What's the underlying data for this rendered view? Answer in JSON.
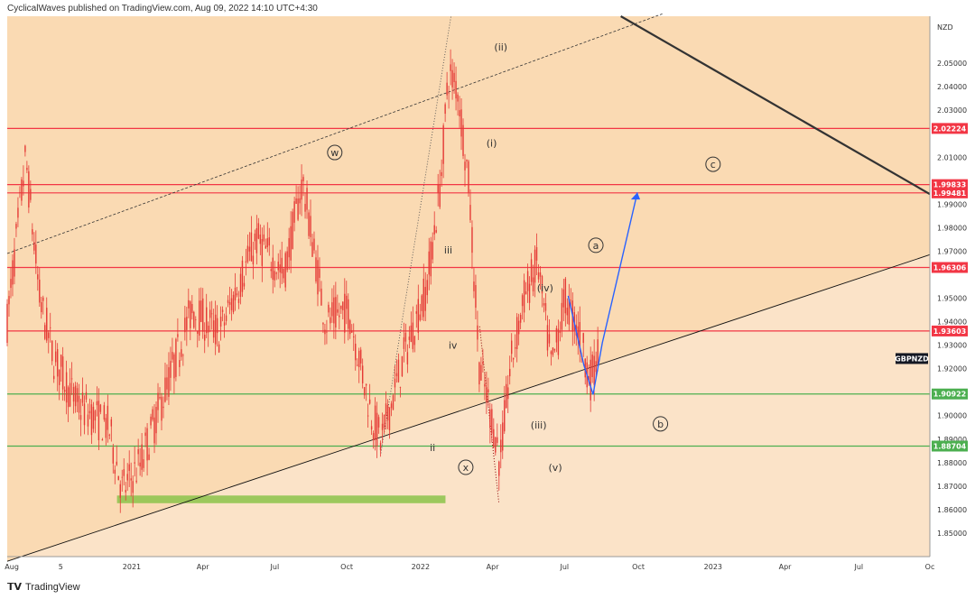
{
  "header": {
    "publisher_line": "CyclicalWaves published on TradingView.com, Aug 09, 2022 14:10 UTC+4:30"
  },
  "footer": {
    "brand": "TradingView"
  },
  "chart_data": {
    "type": "candlestick",
    "symbol": "GBPNZD",
    "currency": "NZD",
    "x_ticks": [
      "Aug",
      "5",
      "2021",
      "Apr",
      "Jul",
      "Oct",
      "2022",
      "Apr",
      "Jul",
      "Oct",
      "2023",
      "Apr",
      "Jul",
      "Oc"
    ],
    "y_ticks": [
      "2.05000",
      "2.04000",
      "2.03000",
      "2.01000",
      "1.99000",
      "1.98000",
      "1.97000",
      "1.95000",
      "1.94000",
      "1.93000",
      "1.92000",
      "1.90000",
      "1.89000",
      "1.88000",
      "1.87000",
      "1.86000",
      "1.85000"
    ],
    "ylim": [
      1.84,
      2.07
    ],
    "price_levels": [
      {
        "label": "2.02224",
        "value": 2.02224,
        "color": "#f23645"
      },
      {
        "label": "1.99833",
        "value": 1.99833,
        "color": "#f23645"
      },
      {
        "label": "1.99481",
        "value": 1.99481,
        "color": "#f23645"
      },
      {
        "label": "1.96306",
        "value": 1.96306,
        "color": "#f23645"
      },
      {
        "label": "1.93603",
        "value": 1.93603,
        "color": "#f23645"
      },
      {
        "label": "1.90922",
        "value": 1.90922,
        "color": "#4caf50"
      },
      {
        "label": "1.88704",
        "value": 1.88704,
        "color": "#4caf50"
      }
    ],
    "wave_labels": [
      {
        "text": "(ii)",
        "circled": false,
        "t": 0.535,
        "price": 2.057
      },
      {
        "text": "(i)",
        "circled": false,
        "t": 0.525,
        "price": 2.016
      },
      {
        "text": "w",
        "circled": true,
        "t": 0.355,
        "price": 2.012
      },
      {
        "text": "c",
        "circled": true,
        "t": 0.765,
        "price": 2.007
      },
      {
        "text": "a",
        "circled": true,
        "t": 0.638,
        "price": 1.9725
      },
      {
        "text": "iii",
        "circled": false,
        "t": 0.478,
        "price": 1.9705
      },
      {
        "text": "(iv)",
        "circled": false,
        "t": 0.583,
        "price": 1.9545
      },
      {
        "text": "iv",
        "circled": false,
        "t": 0.483,
        "price": 1.93
      },
      {
        "text": "b",
        "circled": true,
        "t": 0.708,
        "price": 1.8965
      },
      {
        "text": "(iii)",
        "circled": false,
        "t": 0.576,
        "price": 1.896
      },
      {
        "text": "ii",
        "circled": false,
        "t": 0.461,
        "price": 1.8865
      },
      {
        "text": "x",
        "circled": true,
        "t": 0.497,
        "price": 1.878
      },
      {
        "text": "(v)",
        "circled": false,
        "t": 0.594,
        "price": 1.878
      }
    ],
    "symbol_tag": "GBPNZD",
    "colors": {
      "bg_upper": "#fadab3",
      "bg_lower": "#fbe3c8",
      "candle": "#e53935",
      "projection": "#2962ff",
      "support_zone": "#8bc34a"
    },
    "grid": false
  }
}
